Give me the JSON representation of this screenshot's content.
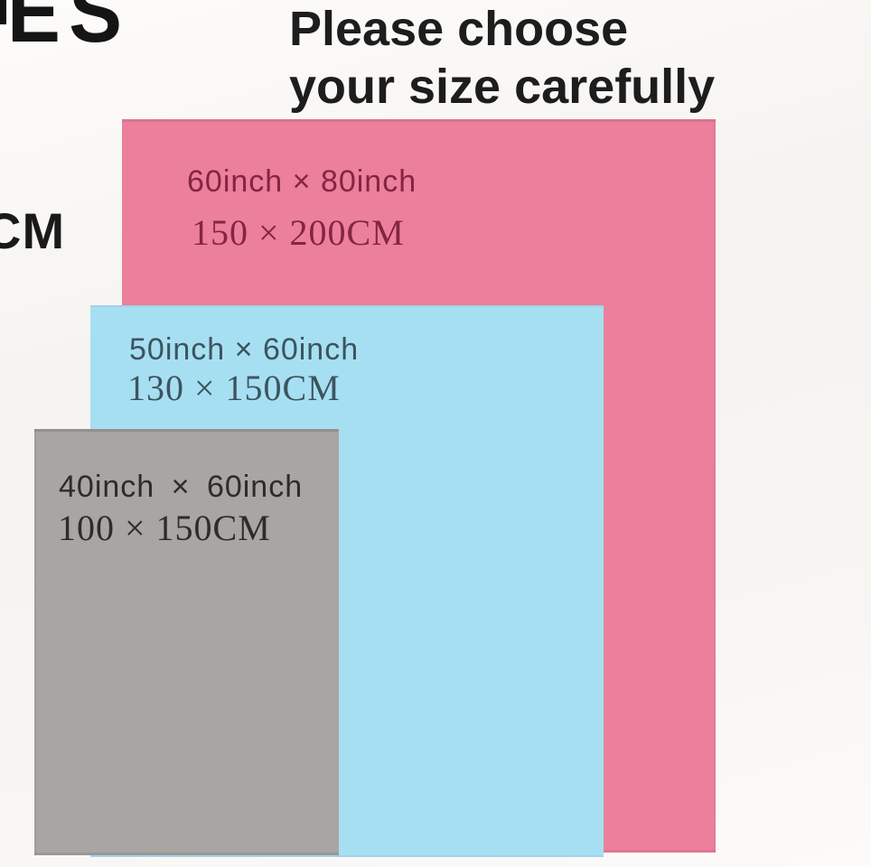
{
  "header": {
    "title_line1": "Please choose",
    "title_line2": "your size carefully"
  },
  "cropped_fragments": {
    "top_left_text": "ES",
    "left_edge_text": "CM"
  },
  "colors": {
    "background": "#f7f5f2",
    "title_text": "#1d1d1d",
    "large_fill": "#ec7f9c",
    "large_text": "#83263f",
    "medium_fill": "#a7dff2",
    "medium_text": "#3c545e",
    "small_fill": "#a8a5a3",
    "small_text": "#2d2c2b"
  },
  "sizes": [
    {
      "rank": "large",
      "inch_label": "60inch × 80inch",
      "cm_label": "150 × 200CM",
      "fill": "#ec7f9c",
      "text_color": "#83263f"
    },
    {
      "rank": "medium",
      "inch_label": "50inch × 60inch",
      "cm_label": "130 × 150CM",
      "fill": "#a7dff2",
      "text_color": "#3c545e"
    },
    {
      "rank": "small",
      "inch_label": "40inch × 60inch",
      "cm_label": "100 × 150CM",
      "fill": "#a8a5a3",
      "text_color": "#2d2c2b"
    }
  ]
}
